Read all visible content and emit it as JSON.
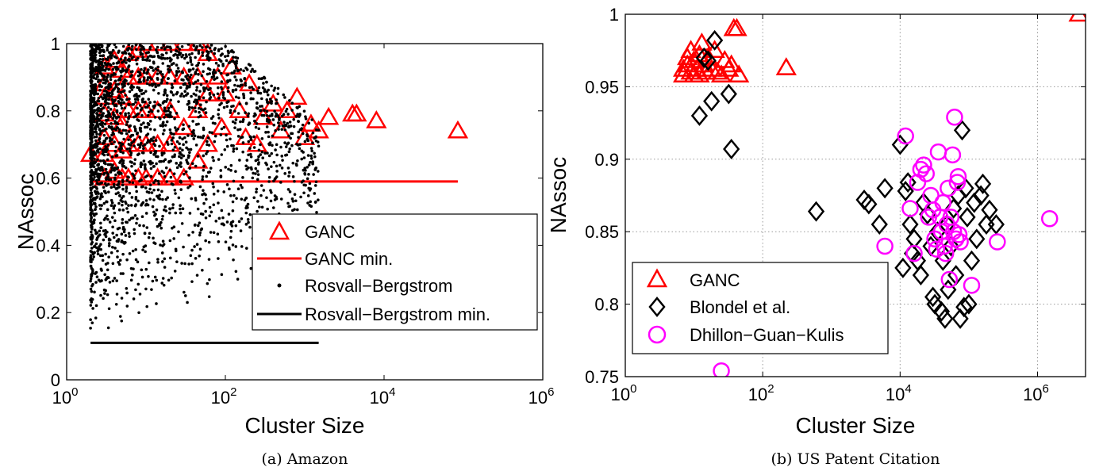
{
  "chart_data": [
    {
      "type": "scatter",
      "caption": "(a) Amazon",
      "xlabel": "Cluster Size",
      "ylabel": "NAssoc",
      "xscale": "log",
      "xlim": [
        1,
        1000000
      ],
      "ylim": [
        0,
        1
      ],
      "xticks": [
        {
          "base": "10",
          "exp": "0"
        },
        {
          "base": "10",
          "exp": "2"
        },
        {
          "base": "10",
          "exp": "4"
        },
        {
          "base": "10",
          "exp": "6"
        }
      ],
      "yticks": [
        "0",
        "0.2",
        "0.4",
        "0.6",
        "0.8",
        "1"
      ],
      "grid": false,
      "legend_position": "center-right",
      "series": [
        {
          "name": "GANC",
          "marker": "triangle",
          "color": "#ff0000",
          "points": [
            [
              2,
              0.67
            ],
            [
              3,
              0.6
            ],
            [
              3,
              0.67
            ],
            [
              3,
              0.72
            ],
            [
              3,
              0.79
            ],
            [
              3,
              0.84
            ],
            [
              3,
              0.88
            ],
            [
              3,
              0.93
            ],
            [
              4,
              0.62
            ],
            [
              4,
              0.7
            ],
            [
              4,
              0.78
            ],
            [
              4,
              0.86
            ],
            [
              4,
              0.95
            ],
            [
              5,
              0.6
            ],
            [
              5,
              0.68
            ],
            [
              5,
              0.76
            ],
            [
              5,
              0.84
            ],
            [
              5,
              0.92
            ],
            [
              6,
              0.6
            ],
            [
              6,
              0.7
            ],
            [
              6,
              0.8
            ],
            [
              6,
              0.9
            ],
            [
              6,
              0.97
            ],
            [
              8,
              0.6
            ],
            [
              8,
              0.7
            ],
            [
              8,
              0.8
            ],
            [
              8,
              0.9
            ],
            [
              8,
              0.98
            ],
            [
              10,
              0.6
            ],
            [
              10,
              0.7
            ],
            [
              10,
              0.8
            ],
            [
              10,
              0.9
            ],
            [
              10,
              1.0
            ],
            [
              14,
              0.6
            ],
            [
              14,
              0.7
            ],
            [
              14,
              0.8
            ],
            [
              14,
              0.9
            ],
            [
              14,
              1.0
            ],
            [
              20,
              0.6
            ],
            [
              20,
              0.7
            ],
            [
              20,
              0.8
            ],
            [
              20,
              0.9
            ],
            [
              20,
              1.0
            ],
            [
              30,
              0.6
            ],
            [
              30,
              0.75
            ],
            [
              30,
              0.9
            ],
            [
              30,
              1.0
            ],
            [
              45,
              0.65
            ],
            [
              45,
              0.8
            ],
            [
              45,
              0.9
            ],
            [
              45,
              1.0
            ],
            [
              60,
              0.7
            ],
            [
              60,
              0.85
            ],
            [
              60,
              0.97
            ],
            [
              80,
              0.9
            ],
            [
              90,
              0.75
            ],
            [
              100,
              0.85
            ],
            [
              120,
              0.93
            ],
            [
              150,
              0.8
            ],
            [
              180,
              0.72
            ],
            [
              200,
              0.88
            ],
            [
              250,
              0.7
            ],
            [
              300,
              0.78
            ],
            [
              400,
              0.82
            ],
            [
              500,
              0.74
            ],
            [
              600,
              0.8
            ],
            [
              800,
              0.84
            ],
            [
              1000,
              0.72
            ],
            [
              1200,
              0.76
            ],
            [
              1500,
              0.74
            ],
            [
              2000,
              0.78
            ],
            [
              4000,
              0.79
            ],
            [
              4500,
              0.79
            ],
            [
              8000,
              0.77
            ],
            [
              85000,
              0.74
            ]
          ]
        },
        {
          "name": "GANC min.",
          "style": "line",
          "color": "#ff0000",
          "x": [
            2,
            85000
          ],
          "y": 0.59
        },
        {
          "name": "Rosvall−Bergstrom",
          "marker": "dot",
          "color": "#000000",
          "x_range": [
            2,
            1500
          ],
          "y_range": [
            0.1,
            1.0
          ]
        },
        {
          "name": "Rosvall−Bergstrom min.",
          "style": "line",
          "color": "#000000",
          "x": [
            2,
            1500
          ],
          "y": 0.11
        }
      ]
    },
    {
      "type": "scatter",
      "caption": "(b) US Patent Citation",
      "xlabel": "Cluster Size",
      "ylabel": "NAssoc",
      "xscale": "log",
      "xlim": [
        1,
        5000000
      ],
      "ylim": [
        0.75,
        1
      ],
      "xticks": [
        {
          "base": "10",
          "exp": "0"
        },
        {
          "base": "10",
          "exp": "2"
        },
        {
          "base": "10",
          "exp": "4"
        },
        {
          "base": "10",
          "exp": "6"
        }
      ],
      "yticks": [
        "0.75",
        "0.8",
        "0.85",
        "0.9",
        "0.95",
        "1"
      ],
      "grid": true,
      "legend_position": "bottom-left",
      "series": [
        {
          "name": "GANC",
          "marker": "triangle",
          "color": "#ff0000",
          "points": [
            [
              7,
              0.958
            ],
            [
              7,
              0.962
            ],
            [
              8,
              0.965
            ],
            [
              8,
              0.97
            ],
            [
              9,
              0.96
            ],
            [
              9,
              0.975
            ],
            [
              10,
              0.958
            ],
            [
              10,
              0.968
            ],
            [
              11,
              0.962
            ],
            [
              12,
              0.972
            ],
            [
              12,
              0.958
            ],
            [
              13,
              0.98
            ],
            [
              14,
              0.965
            ],
            [
              15,
              0.96
            ],
            [
              16,
              0.97
            ],
            [
              18,
              0.962
            ],
            [
              20,
              0.975
            ],
            [
              22,
              0.96
            ],
            [
              25,
              0.958
            ],
            [
              28,
              0.968
            ],
            [
              32,
              0.962
            ],
            [
              35,
              0.965
            ],
            [
              38,
              0.99
            ],
            [
              42,
              0.99
            ],
            [
              45,
              0.958
            ],
            [
              220,
              0.963
            ],
            [
              4000000,
              1.0
            ]
          ]
        },
        {
          "name": "Blondel et al.",
          "marker": "diamond",
          "color": "#000000",
          "points": [
            [
              12,
              0.93
            ],
            [
              14,
              0.97
            ],
            [
              16,
              0.968
            ],
            [
              18,
              0.94
            ],
            [
              20,
              0.982
            ],
            [
              32,
              0.945
            ],
            [
              35,
              0.907
            ],
            [
              600,
              0.864
            ],
            [
              3000,
              0.872
            ],
            [
              3500,
              0.869
            ],
            [
              5000,
              0.855
            ],
            [
              6000,
              0.88
            ],
            [
              10000,
              0.91
            ],
            [
              11000,
              0.825
            ],
            [
              12000,
              0.878
            ],
            [
              13000,
              0.884
            ],
            [
              14000,
              0.855
            ],
            [
              15000,
              0.835
            ],
            [
              16000,
              0.845
            ],
            [
              18000,
              0.83
            ],
            [
              20000,
              0.82
            ],
            [
              22000,
              0.87
            ],
            [
              25000,
              0.862
            ],
            [
              28000,
              0.84
            ],
            [
              30000,
              0.805
            ],
            [
              32000,
              0.8
            ],
            [
              35000,
              0.85
            ],
            [
              40000,
              0.795
            ],
            [
              42000,
              0.83
            ],
            [
              45000,
              0.79
            ],
            [
              48000,
              0.855
            ],
            [
              50000,
              0.81
            ],
            [
              55000,
              0.84
            ],
            [
              60000,
              0.866
            ],
            [
              65000,
              0.82
            ],
            [
              70000,
              0.875
            ],
            [
              75000,
              0.79
            ],
            [
              80000,
              0.92
            ],
            [
              85000,
              0.798
            ],
            [
              90000,
              0.88
            ],
            [
              95000,
              0.86
            ],
            [
              100000,
              0.8
            ],
            [
              110000,
              0.83
            ],
            [
              120000,
              0.87
            ],
            [
              130000,
              0.845
            ],
            [
              150000,
              0.875
            ],
            [
              180000,
              0.855
            ],
            [
              200000,
              0.865
            ],
            [
              250000,
              0.855
            ],
            [
              160000,
              0.883
            ]
          ]
        },
        {
          "name": "Dhillon−Guan−Kulis",
          "marker": "circle",
          "color": "#ff00ff",
          "points": [
            [
              6000,
              0.84
            ],
            [
              12000,
              0.916
            ],
            [
              14000,
              0.866
            ],
            [
              16000,
              0.835
            ],
            [
              18000,
              0.884
            ],
            [
              20000,
              0.893
            ],
            [
              22000,
              0.896
            ],
            [
              24000,
              0.89
            ],
            [
              26000,
              0.86
            ],
            [
              28000,
              0.875
            ],
            [
              30000,
              0.865
            ],
            [
              32000,
              0.845
            ],
            [
              34000,
              0.838
            ],
            [
              36000,
              0.905
            ],
            [
              38000,
              0.86
            ],
            [
              40000,
              0.85
            ],
            [
              42000,
              0.87
            ],
            [
              44000,
              0.84
            ],
            [
              46000,
              0.835
            ],
            [
              48000,
              0.855
            ],
            [
              50000,
              0.88
            ],
            [
              52000,
              0.817
            ],
            [
              55000,
              0.86
            ],
            [
              58000,
              0.903
            ],
            [
              60000,
              0.85
            ],
            [
              62000,
              0.929
            ],
            [
              65000,
              0.845
            ],
            [
              68000,
              0.884
            ],
            [
              70000,
              0.888
            ],
            [
              72000,
              0.848
            ],
            [
              75000,
              0.843
            ],
            [
              110000,
              0.813
            ],
            [
              260000,
              0.843
            ],
            [
              1500000,
              0.859
            ],
            [
              25,
              0.754
            ]
          ]
        }
      ]
    }
  ],
  "legends": [
    {
      "items": [
        "GANC",
        "GANC min.",
        "Rosvall−Bergstrom",
        "Rosvall−Bergstrom min."
      ]
    },
    {
      "items": [
        "GANC",
        "Blondel et al.",
        "Dhillon−Guan−Kulis"
      ]
    }
  ],
  "text": {
    "caption_a": "(a) Amazon",
    "caption_b": "(b) US Patent Citation",
    "xlabel_a": "Cluster Size",
    "xlabel_b": "Cluster Size",
    "ylabel_a": "NAssoc",
    "ylabel_b": "NAssoc"
  }
}
